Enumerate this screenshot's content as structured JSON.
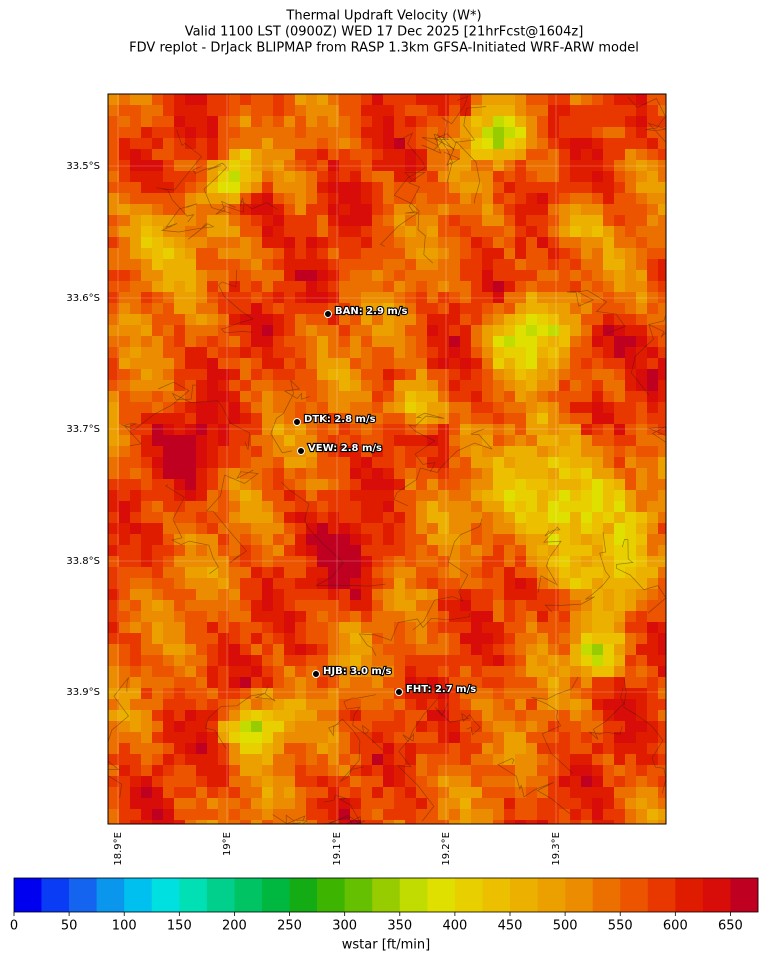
{
  "title": [
    "Thermal Updraft Velocity (W*)",
    "Valid 1100 LST (0900Z) WED 17 Dec 2025 [21hrFcst@1604z]",
    "FDV replot - DrJack BLIPMAP from RASP 1.3km GFSA-Initiated WRF-ARW model"
  ],
  "map": {
    "lat_labels": [
      "33.5°S",
      "33.6°S",
      "33.7°S",
      "33.8°S",
      "33.9°S"
    ],
    "lon_labels": [
      "18.9°E",
      "19°E",
      "19.1°E",
      "19.2°E",
      "19.3°E"
    ],
    "stations": [
      "BAN: 2.9 m/s",
      "DTK: 2.8 m/s",
      "VEW: 2.8 m/s",
      "HJB: 3.0 m/s",
      "FHT: 2.7 m/s"
    ]
  },
  "colorbar": {
    "label": "wstar [ft/min]",
    "lim": [
      0,
      675
    ],
    "ticks": [
      0,
      50,
      100,
      150,
      200,
      250,
      300,
      350,
      400,
      450,
      500,
      550,
      600,
      650
    ],
    "colors": [
      "#0000f0",
      "#0a3cf5",
      "#1464f0",
      "#0a96ec",
      "#00c0f0",
      "#00e0e0",
      "#00e0b4",
      "#00d08c",
      "#00c464",
      "#00b840",
      "#14ac14",
      "#3cb400",
      "#64c000",
      "#96cc00",
      "#c0dc00",
      "#e0e000",
      "#e8d000",
      "#ecc000",
      "#ecb000",
      "#eca000",
      "#ec8c00",
      "#ec7000",
      "#ec5400",
      "#e83800",
      "#e01c00",
      "#d80c08",
      "#c00020"
    ]
  }
}
